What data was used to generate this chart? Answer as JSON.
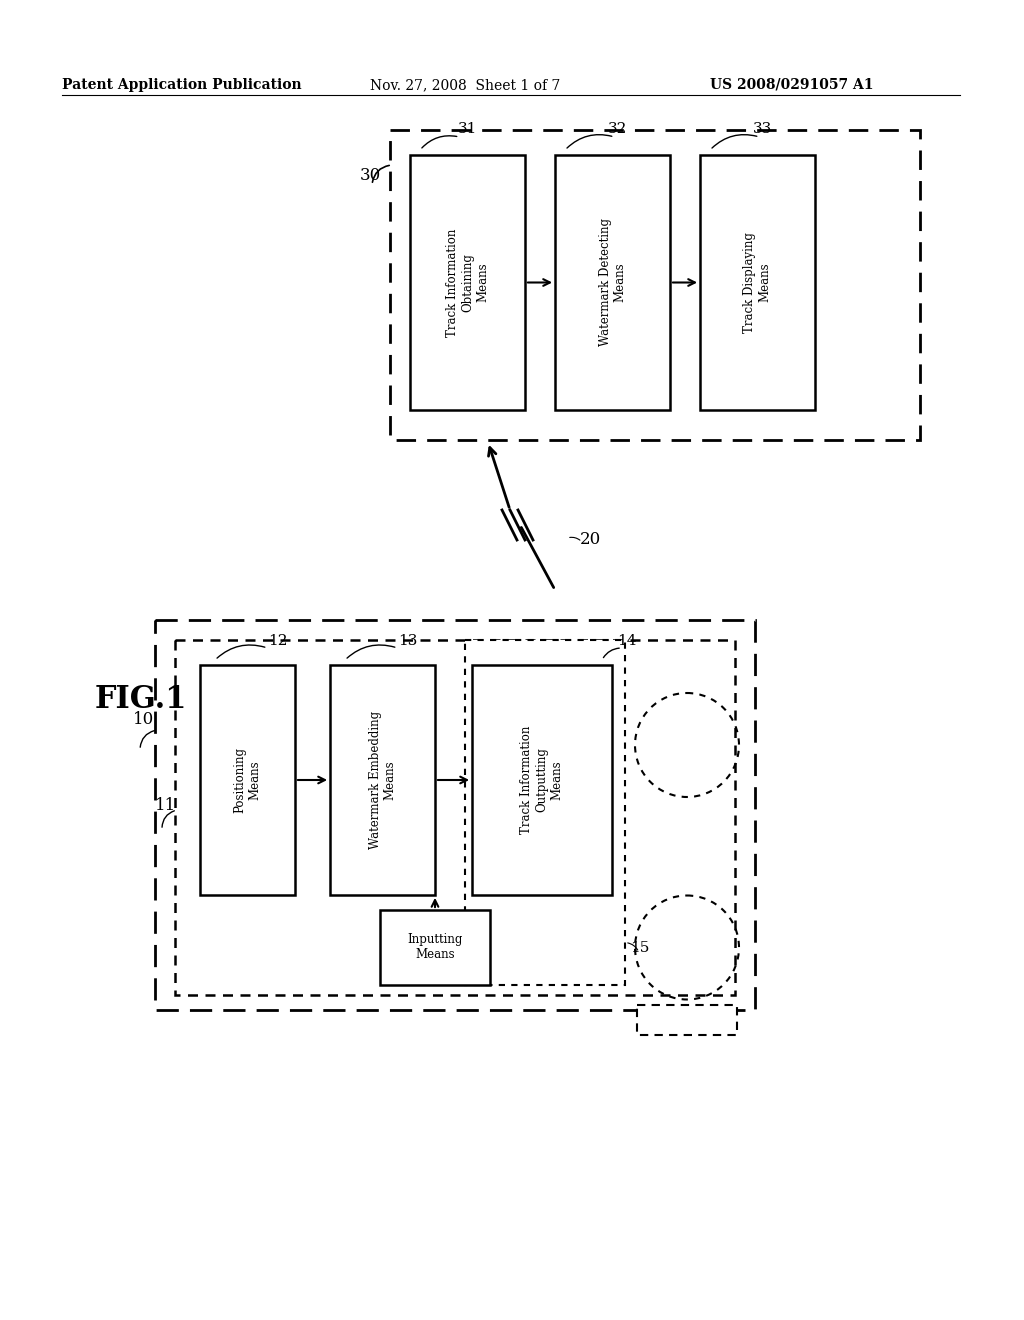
{
  "bg_color": "#ffffff",
  "title_line1": "Patent Application Publication",
  "title_line2": "Nov. 27, 2008  Sheet 1 of 7",
  "title_line3": "US 2008/0291057 A1",
  "fig_label": "FIG.1"
}
